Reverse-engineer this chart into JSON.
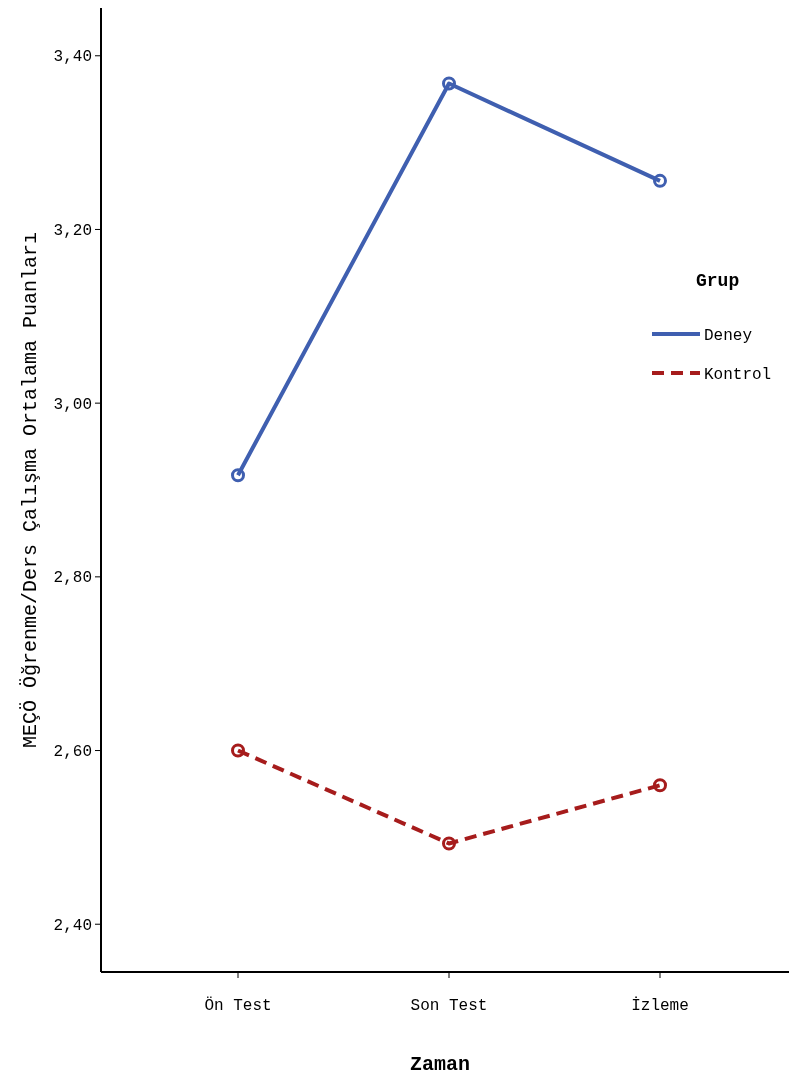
{
  "chart_data": {
    "type": "line",
    "xlabel": "Zaman",
    "ylabel": "MEÇÖ Öğrenme/Ders Çalışma Ortalama Puanları",
    "legend_title": "Grup",
    "categories": [
      "Ön Test",
      "Son Test",
      "İzleme"
    ],
    "series": [
      {
        "name": "Deney",
        "color": "#3f5fb0",
        "values": [
          2.917,
          3.368,
          3.256
        ],
        "line_style": "solid"
      },
      {
        "name": "Kontrol",
        "color": "#a61c1c",
        "values": [
          2.6,
          2.493,
          2.56
        ],
        "line_style": "dashed"
      }
    ],
    "ylim": [
      2.345,
      3.455
    ],
    "yticks": [
      {
        "value": 2.4,
        "label": "2,40"
      },
      {
        "value": 2.6,
        "label": "2,60"
      },
      {
        "value": 2.8,
        "label": "2,80"
      },
      {
        "value": 3.0,
        "label": "3,00"
      },
      {
        "value": 3.2,
        "label": "3,20"
      },
      {
        "value": 3.4,
        "label": "3,40"
      }
    ],
    "marker": "circle",
    "legend": "right",
    "grid": false
  }
}
